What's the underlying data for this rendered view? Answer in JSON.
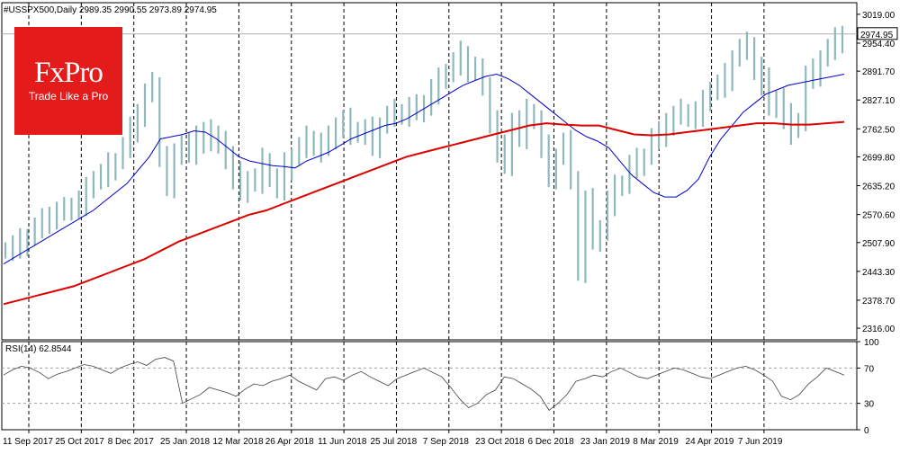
{
  "chart_data": [
    {
      "type": "line",
      "panel": "price",
      "title": "#USSPX500,Daily  2989.35 2990.55 2973.89 2974.95",
      "xlabel": "",
      "ylabel": "",
      "ylim": [
        2290,
        3045
      ],
      "yticks": [
        "3019.00",
        "2954.40",
        "2891.70",
        "2827.10",
        "2762.50",
        "2699.80",
        "2635.20",
        "2570.60",
        "2507.90",
        "2443.30",
        "2378.70",
        "2316.00"
      ],
      "last_price": "2974.95",
      "x_labels": [
        "11 Sep 2017",
        "25 Oct 2017",
        "8 Dec 2017",
        "25 Jan 2018",
        "12 Mar 2018",
        "26 Apr 2018",
        "11 Jun 2018",
        "25 Jul 2018",
        "7 Sep 2018",
        "23 Oct 2018",
        "6 Dec 2018",
        "23 Jan 2019",
        "8 Mar 2019",
        "24 Apr 2019",
        "7 Jun 2019"
      ],
      "grid": true,
      "series": [
        {
          "type": "candles",
          "color": "#8fb8bc",
          "values": [
            2490,
            2500,
            2510,
            2520,
            2540,
            2555,
            2570,
            2575,
            2580,
            2590,
            2600,
            2625,
            2650,
            2660,
            2680,
            2690,
            2720,
            2760,
            2800,
            2840,
            2860,
            2700,
            2640,
            2700,
            2730,
            2710,
            2740,
            2760,
            2730,
            2740,
            2700,
            2660,
            2620,
            2650,
            2650,
            2690,
            2650,
            2630,
            2680,
            2700,
            2720,
            2740,
            2730,
            2720,
            2740,
            2770,
            2780,
            2760,
            2750,
            2760,
            2730,
            2770,
            2790,
            2800,
            2800,
            2810,
            2800,
            2820,
            2850,
            2870,
            2890,
            2910,
            2930,
            2900,
            2890,
            2860,
            2780,
            2720,
            2680,
            2780,
            2750,
            2800,
            2780,
            2720,
            2660,
            2700,
            2730,
            2650,
            2450,
            2600,
            2510,
            2540,
            2600,
            2630,
            2640,
            2680,
            2690,
            2700,
            2740,
            2750,
            2780,
            2790,
            2800,
            2790,
            2800,
            2820,
            2850,
            2860,
            2880,
            2920,
            2940,
            2950,
            2900,
            2870,
            2810,
            2830,
            2790,
            2760,
            2780,
            2880,
            2890,
            2920,
            2940,
            2960,
            2975
          ]
        },
        {
          "name": "",
          "color": "#0000cc",
          "values": [
            2460,
            2475,
            2490,
            2505,
            2520,
            2535,
            2550,
            2565,
            2580,
            2600,
            2620,
            2640,
            2670,
            2700,
            2740,
            2745,
            2750,
            2758,
            2755,
            2740,
            2720,
            2700,
            2690,
            2685,
            2680,
            2678,
            2675,
            2690,
            2700,
            2710,
            2725,
            2740,
            2750,
            2760,
            2770,
            2775,
            2785,
            2800,
            2815,
            2830,
            2845,
            2860,
            2870,
            2880,
            2885,
            2875,
            2860,
            2840,
            2820,
            2800,
            2780,
            2760,
            2745,
            2735,
            2720,
            2690,
            2660,
            2640,
            2620,
            2610,
            2610,
            2625,
            2650,
            2700,
            2740,
            2770,
            2800,
            2820,
            2840,
            2850,
            2860,
            2865,
            2870,
            2875,
            2880,
            2885
          ]
        },
        {
          "name": "",
          "color": "#dd0000",
          "values": [
            2370,
            2380,
            2390,
            2400,
            2410,
            2425,
            2440,
            2455,
            2470,
            2490,
            2510,
            2525,
            2540,
            2555,
            2570,
            2580,
            2595,
            2610,
            2625,
            2640,
            2655,
            2670,
            2685,
            2700,
            2710,
            2720,
            2730,
            2740,
            2750,
            2760,
            2770,
            2775,
            2772,
            2770,
            2770,
            2760,
            2750,
            2748,
            2750,
            2755,
            2760,
            2765,
            2770,
            2775,
            2775,
            2772,
            2772,
            2775,
            2778
          ]
        }
      ]
    },
    {
      "type": "line",
      "panel": "indicator",
      "title": "RSI(14) 62.8544",
      "ylim": [
        0,
        100
      ],
      "yticks": [
        "100",
        "70",
        "30",
        "0"
      ],
      "levels": [
        70,
        30
      ],
      "series": [
        {
          "name": "RSI(14)",
          "color": "#404040",
          "values": [
            62,
            68,
            72,
            70,
            65,
            58,
            63,
            66,
            70,
            74,
            72,
            68,
            64,
            70,
            74,
            77,
            73,
            80,
            82,
            78,
            30,
            35,
            40,
            48,
            45,
            42,
            38,
            46,
            52,
            50,
            55,
            58,
            62,
            55,
            50,
            45,
            58,
            60,
            56,
            62,
            66,
            60,
            55,
            50,
            58,
            62,
            66,
            70,
            65,
            60,
            48,
            35,
            25,
            30,
            40,
            45,
            60,
            58,
            52,
            46,
            38,
            22,
            30,
            40,
            55,
            58,
            62,
            60,
            66,
            70,
            65,
            60,
            58,
            62,
            66,
            70,
            68,
            64,
            60,
            58,
            62,
            66,
            70,
            72,
            68,
            62,
            55,
            38,
            34,
            40,
            52,
            60,
            70,
            66,
            62
          ]
        }
      ]
    }
  ],
  "branding": {
    "logo_title": "FxPro",
    "logo_tagline": "Trade Like a Pro",
    "logo_color": "#e31b1b"
  }
}
